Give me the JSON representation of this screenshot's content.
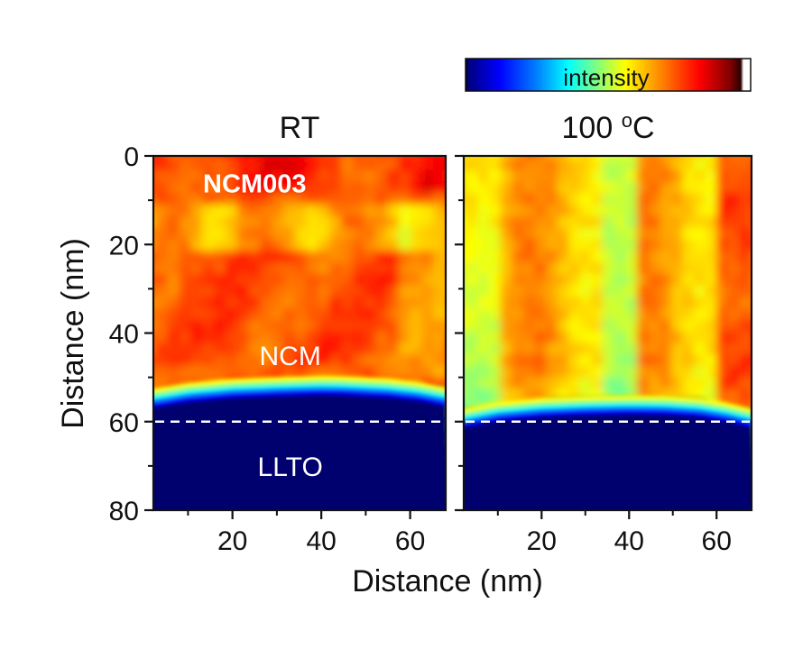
{
  "chart_data": {
    "type": "heatmap",
    "colorbar": {
      "label": "intensity",
      "colormap": "jet",
      "stops": [
        "#000000",
        "#00007f",
        "#0000ff",
        "#0080ff",
        "#00ffff",
        "#80ff80",
        "#ffff00",
        "#ff8000",
        "#ff0000",
        "#7f0000",
        "#2a0000",
        "#ffffff"
      ],
      "location": "top-right"
    },
    "ylabel": "Distance (nm)",
    "xlabel": "Distance (nm)",
    "ylim": [
      0,
      80
    ],
    "xlim": [
      2.2,
      68
    ],
    "y_inverted": true,
    "yticks": [
      0,
      20,
      40,
      60,
      80
    ],
    "yticks_minor": [
      10,
      30,
      50,
      70
    ],
    "xticks": [
      20,
      40,
      60
    ],
    "xticks_minor": [
      10,
      30,
      50
    ],
    "interface_line": {
      "y": 60,
      "style": "dashed",
      "color": "#ffffff"
    },
    "panels": [
      {
        "title": "RT",
        "annotations": [
          {
            "text": "NCM003",
            "x": 25,
            "y": 6,
            "bold": true
          },
          {
            "text": "NCM",
            "x": 33,
            "y": 45,
            "bold": false
          },
          {
            "text": "LLTO",
            "x": 33,
            "y": 70,
            "bold": false
          }
        ],
        "regions": [
          {
            "name": "NCM",
            "y_range": [
              0,
              54
            ],
            "intensity_level": 0.78,
            "description": "orange-red, high intensity"
          },
          {
            "name": "transition",
            "y_range": [
              52,
              56
            ],
            "description": "yellow to cyan to blue gradient"
          },
          {
            "name": "LLTO",
            "y_range": [
              56,
              80
            ],
            "intensity_level": 0.05,
            "description": "dark blue, low intensity"
          }
        ],
        "boundary_depth_nm": [
          55.5,
          54.2,
          53.3,
          52.9,
          52.6,
          52.7,
          53.2,
          54.0,
          55.2
        ],
        "boundary_x_nm": [
          2.2,
          10,
          20,
          30,
          40,
          45,
          55,
          62,
          68
        ]
      },
      {
        "title": "100 °C",
        "annotations": [],
        "regions": [
          {
            "name": "NCM",
            "y_range": [
              0,
              57
            ],
            "intensity_level": 0.65,
            "description": "yellow-orange with vertical streaks; greenish near left edge and x≈37 nm"
          },
          {
            "name": "transition",
            "y_range": [
              56,
              60
            ],
            "description": "cyan to blue gradient"
          },
          {
            "name": "LLTO",
            "y_range": [
              60,
              80
            ],
            "intensity_level": 0.05,
            "description": "dark blue, low intensity"
          }
        ],
        "boundary_depth_nm": [
          60,
          58.5,
          57.6,
          57.2,
          57.0,
          57.1,
          57.6,
          58.6,
          60
        ],
        "boundary_x_nm": [
          2.2,
          10,
          20,
          30,
          40,
          48,
          56,
          62,
          68
        ]
      }
    ]
  }
}
